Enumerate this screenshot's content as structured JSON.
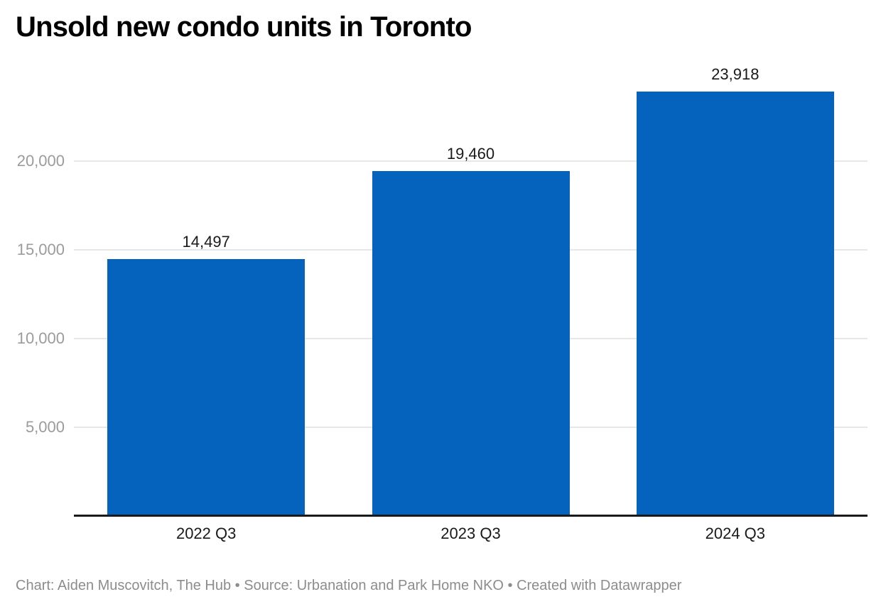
{
  "title": "Unsold new condo units in Toronto",
  "footer": {
    "text": "Chart: Aiden Muscovitch, The Hub • Source: Urbanation and Park Home NKO • Created with Datawrapper"
  },
  "colors": {
    "bar": "#0562bd",
    "grid_line": "#e7e7e7",
    "axis_line": "#1a1a1a",
    "y_tick_text": "#9b9b9b",
    "x_tick_text": "#1a1a1a",
    "value_label_text": "#1a1a1a",
    "title_text": "#000000",
    "footer_text": "#8c8c8c"
  },
  "chart_data": {
    "type": "bar",
    "title": "Unsold new condo units in Toronto",
    "categories": [
      "2022 Q3",
      "2023 Q3",
      "2024 Q3"
    ],
    "values": [
      14497,
      19460,
      23918
    ],
    "value_labels": [
      "14,497",
      "19,460",
      "23,918"
    ],
    "xlabel": "",
    "ylabel": "",
    "ylim": [
      0,
      25680
    ],
    "yticks": [
      {
        "value": 5000,
        "label": "5,000"
      },
      {
        "value": 10000,
        "label": "10,000"
      },
      {
        "value": 15000,
        "label": "15,000"
      },
      {
        "value": 20000,
        "label": "20,000"
      }
    ],
    "grid": "horizontal",
    "legend": "none"
  }
}
